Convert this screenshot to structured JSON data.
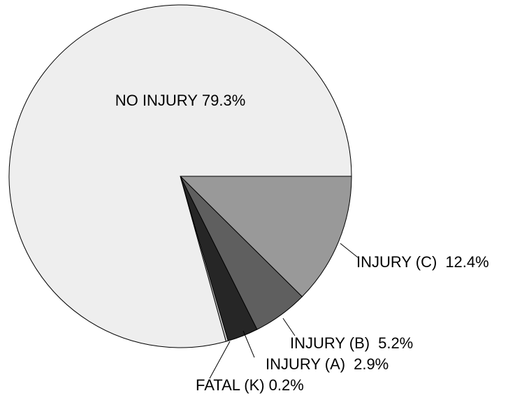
{
  "chart_data": {
    "type": "pie",
    "categories": [
      "INJURY (C)",
      "INJURY (B)",
      "INJURY (A)",
      "FATAL (K)",
      "NO INJURY"
    ],
    "values": [
      12.4,
      5.2,
      2.9,
      0.2,
      79.3
    ],
    "value_labels": [
      "12.4%",
      "5.2%",
      "2.9%",
      "0.2%",
      "79.3%"
    ],
    "colors": [
      "#999999",
      "#5f5f5f",
      "#262626",
      "#cccccc",
      "#eeeeee"
    ]
  }
}
